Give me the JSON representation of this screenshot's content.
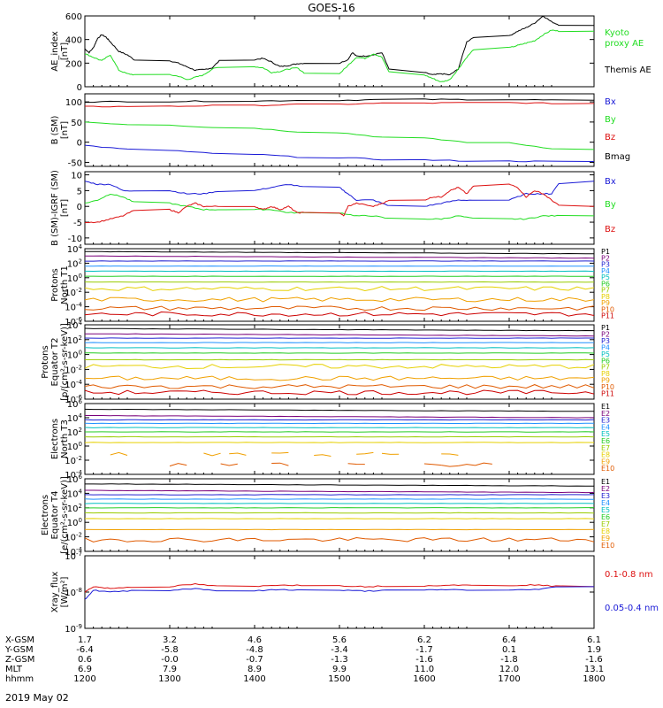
{
  "title": "GOES-16",
  "date_label": "2019 May 02",
  "colors": {
    "black": "#000000",
    "blue": "#1a1ad6",
    "green": "#22dd22",
    "red": "#dd1111",
    "p_palette": [
      "#000000",
      "#7a007a",
      "#2020d0",
      "#1e90ff",
      "#00bfbf",
      "#22cc22",
      "#99cc00",
      "#e6d000",
      "#f0a000",
      "#e05a00",
      "#cc0000"
    ]
  },
  "chart_data": [
    {
      "type": "line",
      "id": "ae",
      "ylabel": "AE_index\n[nT]",
      "ylim": [
        0,
        600
      ],
      "yticks": [
        "0",
        "200",
        "400",
        "600"
      ],
      "legend": [
        {
          "text": "Kyoto",
          "color": "green"
        },
        {
          "text": "proxy AE",
          "color": "green"
        },
        {
          "text": "Themis AE",
          "color": "black"
        }
      ],
      "series": [
        {
          "name": "Themis AE",
          "color": "black",
          "x": [
            1200,
            1205,
            1210,
            1215,
            1220,
            1225,
            1230,
            1240,
            1250,
            1300,
            1310,
            1320,
            1330,
            1340,
            1350,
            1400,
            1410,
            1420,
            1430,
            1440,
            1450,
            1500,
            1510,
            1515,
            1520,
            1530,
            1540,
            1550,
            1600,
            1610,
            1620,
            1630,
            1640,
            1650,
            1700,
            1710,
            1720,
            1730,
            1740,
            1750,
            1800
          ],
          "y": [
            320,
            290,
            330,
            410,
            440,
            420,
            380,
            300,
            270,
            220,
            200,
            170,
            140,
            145,
            160,
            230,
            240,
            210,
            170,
            180,
            195,
            200,
            230,
            290,
            260,
            260,
            270,
            290,
            120,
            100,
            110,
            100,
            150,
            380,
            430,
            470,
            500,
            540,
            600,
            550,
            520
          ]
        },
        {
          "name": "Kyoto proxy AE",
          "color": "green",
          "x": [
            1200,
            1210,
            1220,
            1230,
            1240,
            1250,
            1300,
            1310,
            1320,
            1330,
            1340,
            1350,
            1400,
            1410,
            1420,
            1430,
            1440,
            1450,
            1500,
            1510,
            1520,
            1530,
            1540,
            1550,
            1600,
            1610,
            1620,
            1630,
            1640,
            1650,
            1700,
            1710,
            1720,
            1730,
            1740,
            1750,
            1800
          ],
          "y": [
            280,
            250,
            220,
            270,
            140,
            110,
            100,
            90,
            60,
            80,
            100,
            150,
            170,
            160,
            120,
            130,
            150,
            160,
            110,
            180,
            250,
            240,
            280,
            250,
            100,
            70,
            40,
            60,
            150,
            250,
            330,
            350,
            370,
            390,
            440,
            480,
            470
          ]
        }
      ]
    },
    {
      "type": "line",
      "id": "bsm",
      "ylabel": "B (SM)\n[nT]",
      "ylim": [
        -60,
        120
      ],
      "yticks": [
        "-50",
        "0",
        "50",
        "100"
      ],
      "legend": [
        {
          "text": "Bx",
          "color": "blue"
        },
        {
          "text": "By",
          "color": "green"
        },
        {
          "text": "Bz",
          "color": "red"
        },
        {
          "text": "Bmag",
          "color": "black"
        }
      ],
      "series": [
        {
          "name": "Bmag",
          "color": "black",
          "x": [
            1200,
            1300,
            1400,
            1500,
            1600,
            1700,
            1800
          ],
          "y": [
            100,
            101,
            102,
            104,
            106,
            106,
            104
          ]
        },
        {
          "name": "Bz",
          "color": "red",
          "x": [
            1200,
            1300,
            1400,
            1500,
            1600,
            1700,
            1800
          ],
          "y": [
            88,
            89,
            91,
            94,
            97,
            98,
            96
          ]
        },
        {
          "name": "By",
          "color": "green",
          "x": [
            1200,
            1300,
            1400,
            1500,
            1600,
            1700,
            1800
          ],
          "y": [
            50,
            43,
            35,
            24,
            10,
            -2,
            -18
          ]
        },
        {
          "name": "Bx",
          "color": "blue",
          "x": [
            1200,
            1300,
            1400,
            1500,
            1600,
            1700,
            1800
          ],
          "y": [
            -8,
            -20,
            -30,
            -38,
            -44,
            -47,
            -48
          ]
        }
      ]
    },
    {
      "type": "line",
      "id": "bdiff",
      "ylabel": "B (SM)-IGRF (SM)\n[nT]",
      "ylim": [
        -12,
        11
      ],
      "yticks": [
        "-10",
        "-5",
        "0",
        "5",
        "10"
      ],
      "legend": [
        {
          "text": "Bx",
          "color": "blue"
        },
        {
          "text": "By",
          "color": "green"
        },
        {
          "text": "Bz",
          "color": "red"
        }
      ],
      "series": [
        {
          "name": "Bx",
          "color": "blue",
          "x": [
            1200,
            1215,
            1230,
            1245,
            1300,
            1320,
            1340,
            1400,
            1420,
            1440,
            1500,
            1510,
            1520,
            1540,
            1600,
            1620,
            1640,
            1700,
            1720,
            1740,
            1750,
            1800
          ],
          "y": [
            8,
            7,
            7,
            5,
            5,
            4,
            4,
            5,
            6,
            7,
            6,
            4,
            2,
            2,
            0,
            1,
            2,
            2,
            4,
            4,
            4,
            8
          ]
        },
        {
          "name": "By",
          "color": "green",
          "x": [
            1200,
            1215,
            1230,
            1245,
            1300,
            1320,
            1340,
            1400,
            1420,
            1440,
            1500,
            1520,
            1540,
            1600,
            1620,
            1640,
            1700,
            1720,
            1740,
            1800
          ],
          "y": [
            1,
            2,
            4,
            3,
            1,
            0,
            -1,
            -1,
            -1,
            -2,
            -2,
            -3,
            -3,
            -4,
            -4,
            -3,
            -4,
            -4,
            -3,
            -3
          ]
        },
        {
          "name": "Bz",
          "color": "red",
          "x": [
            1200,
            1215,
            1230,
            1245,
            1300,
            1310,
            1320,
            1330,
            1340,
            1400,
            1410,
            1420,
            1430,
            1440,
            1450,
            1500,
            1505,
            1510,
            1520,
            1540,
            1550,
            1600,
            1610,
            1620,
            1630,
            1640,
            1650,
            1700,
            1710,
            1720,
            1730,
            1740,
            1750,
            1800
          ],
          "y": [
            -5,
            -5,
            -4,
            -3,
            -1,
            -2,
            0,
            1,
            0,
            0,
            -1,
            0,
            -1,
            0,
            -2,
            -2,
            -3,
            0,
            1,
            0,
            1,
            2,
            3,
            3,
            5,
            6,
            4,
            7,
            6,
            3,
            5,
            4,
            2,
            0
          ]
        }
      ]
    },
    {
      "type": "line",
      "id": "pn",
      "log": true,
      "ylabel": "Protons\nNorth T1",
      "ylim": [
        -6,
        4
      ],
      "yticks": [
        "10^-6",
        "10^-4",
        "10^-2",
        "10^0",
        "10^2",
        "10^4"
      ],
      "legend": [
        "P1",
        "P2",
        "P3",
        "P4",
        "P5",
        "P6",
        "P7",
        "P8",
        "P9",
        "P10",
        "P11"
      ],
      "levels": [
        3.6,
        3.0,
        2.3,
        1.6,
        0.9,
        0.2,
        -0.6,
        -1.5,
        -3.0,
        -4.2,
        -5.0
      ]
    },
    {
      "type": "line",
      "id": "pe",
      "log": true,
      "ylabel": "Protons\nEquator T2\n[p/(cm²-s-sr-keV)]",
      "ylim": [
        -6,
        4
      ],
      "yticks": [
        "10^-6",
        "10^-4",
        "10^-2",
        "10^0",
        "10^2",
        "10^4"
      ],
      "legend": [
        "P1",
        "P2",
        "P3",
        "P4",
        "P5",
        "P6",
        "P7",
        "P8",
        "P9",
        "P10",
        "P11"
      ],
      "levels": [
        3.5,
        2.8,
        2.2,
        1.6,
        0.9,
        0.2,
        -0.7,
        -1.6,
        -3.2,
        -4.3,
        -5.1
      ]
    },
    {
      "type": "line",
      "id": "en",
      "log": true,
      "ylabel": "Electrons\nNorth T3",
      "ylim": [
        -4,
        6
      ],
      "yticks": [
        "10^-4",
        "10^-2",
        "10^0",
        "10^2",
        "10^4",
        "10^6"
      ],
      "legend": [
        "E1",
        "E2",
        "E3",
        "E4",
        "E5",
        "E6",
        "E7",
        "E8",
        "E9",
        "E10"
      ],
      "levels": [
        5.2,
        4.3,
        3.7,
        3.2,
        2.6,
        2.0,
        1.3,
        0.5,
        -1.2,
        -2.6
      ]
    },
    {
      "type": "line",
      "id": "ee",
      "log": true,
      "ylabel": "Electrons\nEquator T4\n[e/(cm²-s-sr-keV)]",
      "ylim": [
        -4,
        6
      ],
      "yticks": [
        "10^-4",
        "10^-2",
        "10^0",
        "10^2",
        "10^4",
        "10^6"
      ],
      "legend": [
        "E1",
        "E2",
        "E3",
        "E4",
        "E5",
        "E6",
        "E7",
        "E8",
        "E9",
        "E10"
      ],
      "levels": [
        5.3,
        4.4,
        3.8,
        3.2,
        2.6,
        2.0,
        1.3,
        0.5,
        -1.0,
        -2.4
      ]
    },
    {
      "type": "line",
      "id": "xray",
      "log": true,
      "ylabel": "Xray_flux\n[W/m²]",
      "ylim": [
        -9,
        -7
      ],
      "yticks": [
        "10^-9",
        "10^-8",
        "10^-7"
      ],
      "legend": [
        {
          "text": "0.1-0.8 nm",
          "color": "red"
        },
        {
          "text": "0.05-0.4 nm",
          "color": "blue"
        }
      ],
      "series": [
        {
          "name": "0.1-0.8 nm",
          "color": "red",
          "x": [
            1200,
            1210,
            1230,
            1300,
            1330,
            1400,
            1430,
            1500,
            1530,
            1600,
            1630,
            1700,
            1730,
            1800
          ],
          "y": [
            -8.0,
            -7.85,
            -7.9,
            -7.85,
            -7.78,
            -7.85,
            -7.8,
            -7.82,
            -7.85,
            -7.83,
            -7.8,
            -7.82,
            -7.8,
            -7.85
          ]
        },
        {
          "name": "0.05-0.4 nm",
          "color": "blue",
          "x": [
            1200,
            1210,
            1230,
            1300,
            1330,
            1400,
            1430,
            1500,
            1530,
            1600,
            1630,
            1700,
            1730,
            1800
          ],
          "y": [
            -8.2,
            -7.95,
            -8.0,
            -7.95,
            -7.9,
            -7.97,
            -7.93,
            -7.95,
            -7.97,
            -7.95,
            -7.93,
            -7.95,
            -7.93,
            -7.85
          ]
        }
      ]
    }
  ],
  "x_axis": {
    "xlim": [
      1200,
      1800
    ],
    "ticks": [
      1200,
      1300,
      1400,
      1500,
      1600,
      1700,
      1800
    ],
    "rows": [
      {
        "label": "X-GSM",
        "values": [
          "1.7",
          "3.2",
          "4.6",
          "5.6",
          "6.2",
          "6.4",
          "6.1"
        ]
      },
      {
        "label": "Y-GSM",
        "values": [
          "-6.4",
          "-5.8",
          "-4.8",
          "-3.4",
          "-1.7",
          "0.1",
          "1.9"
        ]
      },
      {
        "label": "Z-GSM",
        "values": [
          "0.6",
          "-0.0",
          "-0.7",
          "-1.3",
          "-1.6",
          "-1.8",
          "-1.6"
        ]
      },
      {
        "label": "MLT",
        "values": [
          "6.9",
          "7.9",
          "8.9",
          "9.9",
          "11.0",
          "12.0",
          "13.1"
        ]
      },
      {
        "label": "hhmm",
        "values": [
          "1200",
          "1300",
          "1400",
          "1500",
          "1600",
          "1700",
          "1800"
        ]
      }
    ]
  }
}
